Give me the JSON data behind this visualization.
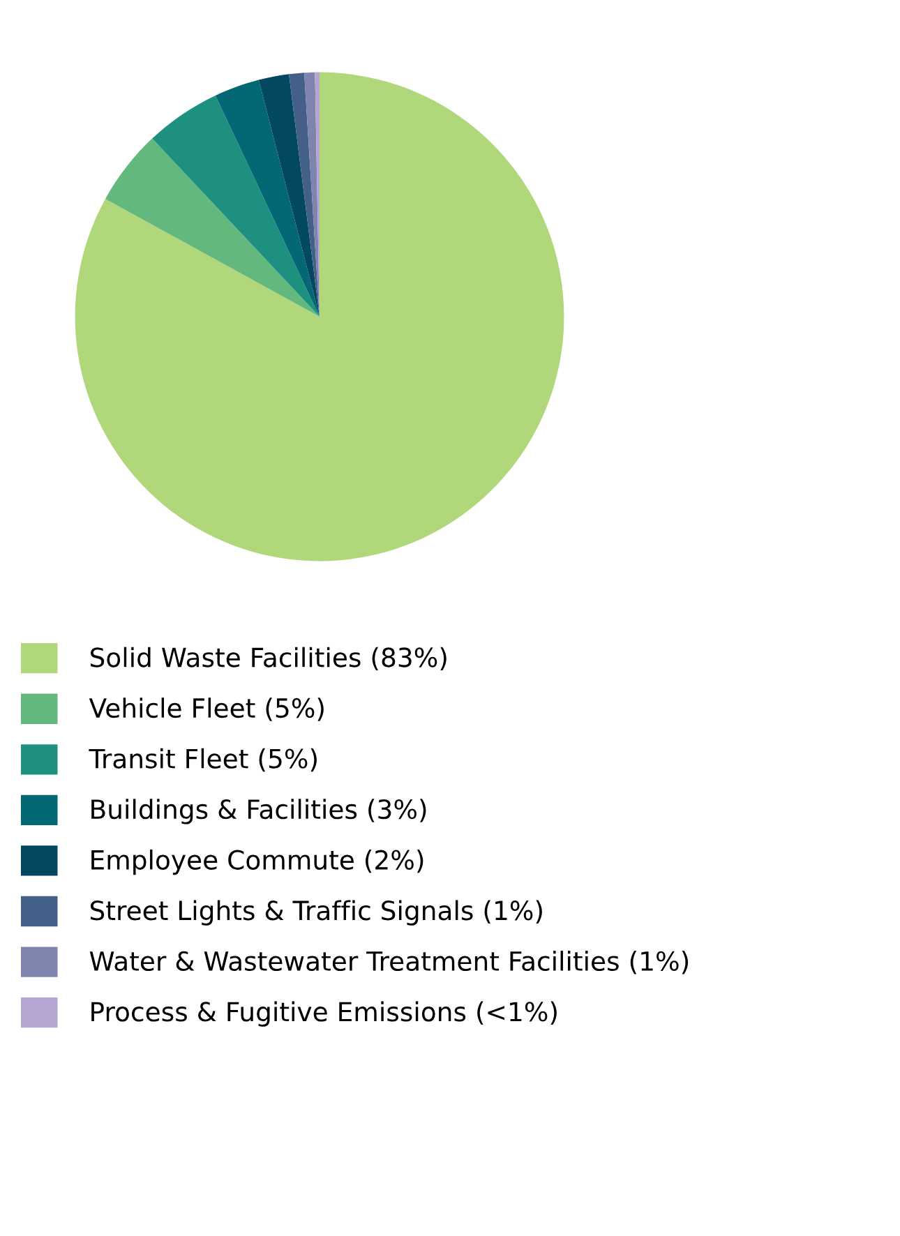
{
  "chart_data": {
    "type": "pie",
    "categories": [
      "Solid Waste Facilities (83%)",
      "Vehicle Fleet (5%)",
      "Transit Fleet (5%)",
      "Buildings & Facilities (3%)",
      "Employee Commute (2%)",
      "Street Lights & Traffic Signals (1%)",
      "Water & Wastewater Treatment Facilities (1%)",
      "Process & Fugitive Emissions (<1%)"
    ],
    "values": [
      83,
      5,
      5,
      3,
      2,
      1,
      0.7,
      0.3
    ],
    "colors": [
      "#b0d77a",
      "#62b87d",
      "#1e9080",
      "#036873",
      "#024860",
      "#456088",
      "#7e84ae",
      "#b5a5d0"
    ],
    "legend": "bottom"
  }
}
